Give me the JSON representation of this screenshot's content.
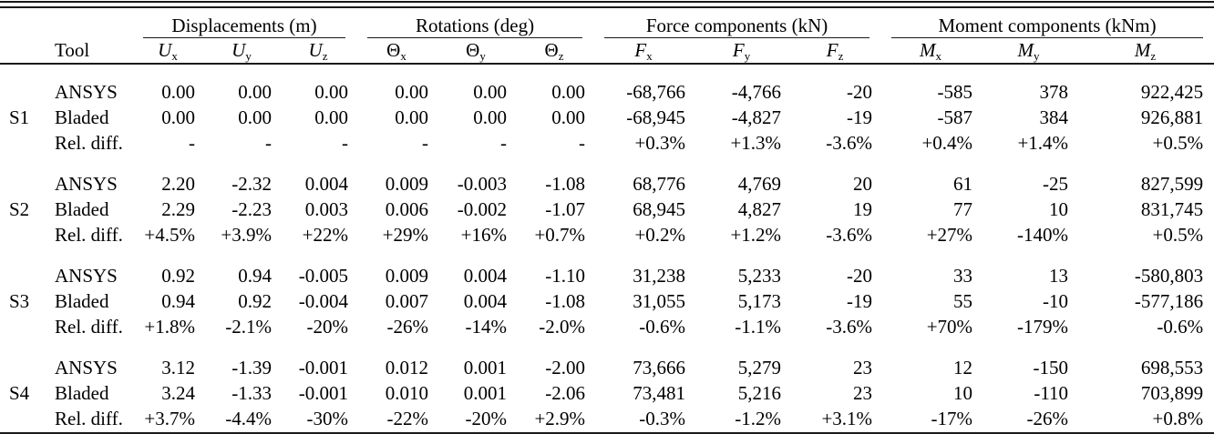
{
  "table": {
    "tool_header": "Tool",
    "col_groups": [
      {
        "label": "Displacements (m)",
        "cols": [
          {
            "name": "u-x",
            "base": "U",
            "sub": "x",
            "italic": true
          },
          {
            "name": "u-y",
            "base": "U",
            "sub": "y",
            "italic": true
          },
          {
            "name": "u-z",
            "base": "U",
            "sub": "z",
            "italic": true
          }
        ]
      },
      {
        "label": "Rotations (deg)",
        "cols": [
          {
            "name": "theta-x",
            "base": "Θ",
            "sub": "x",
            "italic": false
          },
          {
            "name": "theta-y",
            "base": "Θ",
            "sub": "y",
            "italic": false
          },
          {
            "name": "theta-z",
            "base": "Θ",
            "sub": "z",
            "italic": false
          }
        ]
      },
      {
        "label": "Force components (kN)",
        "cols": [
          {
            "name": "f-x",
            "base": "F",
            "sub": "x",
            "italic": true
          },
          {
            "name": "f-y",
            "base": "F",
            "sub": "y",
            "italic": true
          },
          {
            "name": "f-z",
            "base": "F",
            "sub": "z",
            "italic": true
          }
        ]
      },
      {
        "label": "Moment components (kNm)",
        "cols": [
          {
            "name": "m-x",
            "base": "M",
            "sub": "x",
            "italic": true
          },
          {
            "name": "m-y",
            "base": "M",
            "sub": "y",
            "italic": true
          },
          {
            "name": "m-z",
            "base": "M",
            "sub": "z",
            "italic": true
          }
        ]
      }
    ],
    "groups": [
      {
        "station": "S1",
        "rows": [
          {
            "tool": "ANSYS",
            "values": [
              "0.00",
              "0.00",
              "0.00",
              "0.00",
              "0.00",
              "0.00",
              "-68,766",
              "-4,766",
              "-20",
              "-585",
              "378",
              "922,425"
            ]
          },
          {
            "tool": "Bladed",
            "values": [
              "0.00",
              "0.00",
              "0.00",
              "0.00",
              "0.00",
              "0.00",
              "-68,945",
              "-4,827",
              "-19",
              "-587",
              "384",
              "926,881"
            ]
          },
          {
            "tool": "Rel. diff.",
            "values": [
              "-",
              "-",
              "-",
              "-",
              "-",
              "-",
              "+0.3%",
              "+1.3%",
              "-3.6%",
              "+0.4%",
              "+1.4%",
              "+0.5%"
            ]
          }
        ]
      },
      {
        "station": "S2",
        "rows": [
          {
            "tool": "ANSYS",
            "values": [
              "2.20",
              "-2.32",
              "0.004",
              "0.009",
              "-0.003",
              "-1.08",
              "68,776",
              "4,769",
              "20",
              "61",
              "-25",
              "827,599"
            ]
          },
          {
            "tool": "Bladed",
            "values": [
              "2.29",
              "-2.23",
              "0.003",
              "0.006",
              "-0.002",
              "-1.07",
              "68,945",
              "4,827",
              "19",
              "77",
              "10",
              "831,745"
            ]
          },
          {
            "tool": "Rel. diff.",
            "values": [
              "+4.5%",
              "+3.9%",
              "+22%",
              "+29%",
              "+16%",
              "+0.7%",
              "+0.2%",
              "+1.2%",
              "-3.6%",
              "+27%",
              "-140%",
              "+0.5%"
            ]
          }
        ]
      },
      {
        "station": "S3",
        "rows": [
          {
            "tool": "ANSYS",
            "values": [
              "0.92",
              "0.94",
              "-0.005",
              "0.009",
              "0.004",
              "-1.10",
              "31,238",
              "5,233",
              "-20",
              "33",
              "13",
              "-580,803"
            ]
          },
          {
            "tool": "Bladed",
            "values": [
              "0.94",
              "0.92",
              "-0.004",
              "0.007",
              "0.004",
              "-1.08",
              "31,055",
              "5,173",
              "-19",
              "55",
              "-10",
              "-577,186"
            ]
          },
          {
            "tool": "Rel. diff.",
            "values": [
              "+1.8%",
              "-2.1%",
              "-20%",
              "-26%",
              "-14%",
              "-2.0%",
              "-0.6%",
              "-1.1%",
              "-3.6%",
              "+70%",
              "-179%",
              "-0.6%"
            ]
          }
        ]
      },
      {
        "station": "S4",
        "rows": [
          {
            "tool": "ANSYS",
            "values": [
              "3.12",
              "-1.39",
              "-0.001",
              "0.012",
              "0.001",
              "-2.00",
              "73,666",
              "5,279",
              "23",
              "12",
              "-150",
              "698,553"
            ]
          },
          {
            "tool": "Bladed",
            "values": [
              "3.24",
              "-1.33",
              "-0.001",
              "0.010",
              "0.001",
              "-2.06",
              "73,481",
              "5,216",
              "23",
              "10",
              "-110",
              "703,899"
            ]
          },
          {
            "tool": "Rel. diff.",
            "values": [
              "+3.7%",
              "-4.4%",
              "-30%",
              "-22%",
              "-20%",
              "+2.9%",
              "-0.3%",
              "-1.2%",
              "+3.1%",
              "-17%",
              "-26%",
              "+0.8%"
            ]
          }
        ]
      }
    ]
  }
}
